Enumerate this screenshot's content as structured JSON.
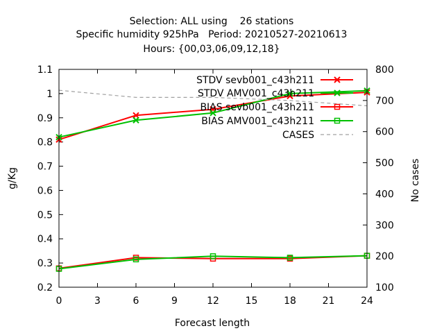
{
  "chart_data": {
    "type": "line",
    "title_lines": [
      "Selection: ALL using    26 stations",
      "Specific humidity 925hPa   Period: 20210527-20210613",
      "Hours: {00,03,06,09,12,18}"
    ],
    "xlabel": "Forecast length",
    "ylabel": "g/Kg",
    "y2label": "No cases",
    "xlim": [
      0,
      24
    ],
    "ylim": [
      0.2,
      1.1
    ],
    "y2lim": [
      100,
      800
    ],
    "xticks": [
      "0",
      "3",
      "6",
      "9",
      "12",
      "15",
      "18",
      "21",
      "24"
    ],
    "yticks": [
      "0.2",
      "0.3",
      "0.4",
      "0.5",
      "0.6",
      "0.7",
      "0.8",
      "0.9",
      "1",
      "1.1"
    ],
    "y2ticks": [
      "100",
      "200",
      "300",
      "400",
      "500",
      "600",
      "700",
      "800"
    ],
    "grid": false,
    "legend_position": "top-right",
    "series": [
      {
        "name": "STDV sevb001_c43h211",
        "color": "#ff0000",
        "marker": "x",
        "axis": "y",
        "x": [
          0,
          6,
          12,
          18,
          24
        ],
        "values": [
          0.81,
          0.91,
          0.935,
          0.99,
          1.005
        ]
      },
      {
        "name": "STDV AMV001_c43h211",
        "color": "#00c000",
        "marker": "x",
        "axis": "y",
        "x": [
          0,
          6,
          12,
          18,
          24
        ],
        "values": [
          0.82,
          0.89,
          0.92,
          1.0,
          1.012
        ]
      },
      {
        "name": "BIAS sevb001_c43h211",
        "color": "#ff0000",
        "marker": "square",
        "axis": "y",
        "x": [
          0,
          6,
          12,
          18,
          24
        ],
        "values": [
          0.278,
          0.322,
          0.318,
          0.318,
          0.33
        ]
      },
      {
        "name": "BIAS AMV001_c43h211",
        "color": "#00c000",
        "marker": "square",
        "axis": "y",
        "x": [
          0,
          6,
          12,
          18,
          24
        ],
        "values": [
          0.276,
          0.315,
          0.328,
          0.322,
          0.33
        ]
      },
      {
        "name": "CASES",
        "color": "#a0a0a0",
        "marker": "none",
        "dashed": true,
        "axis": "y2",
        "x": [
          0,
          6,
          12,
          18,
          24
        ],
        "values": [
          733,
          710,
          710,
          700,
          683
        ]
      }
    ]
  }
}
